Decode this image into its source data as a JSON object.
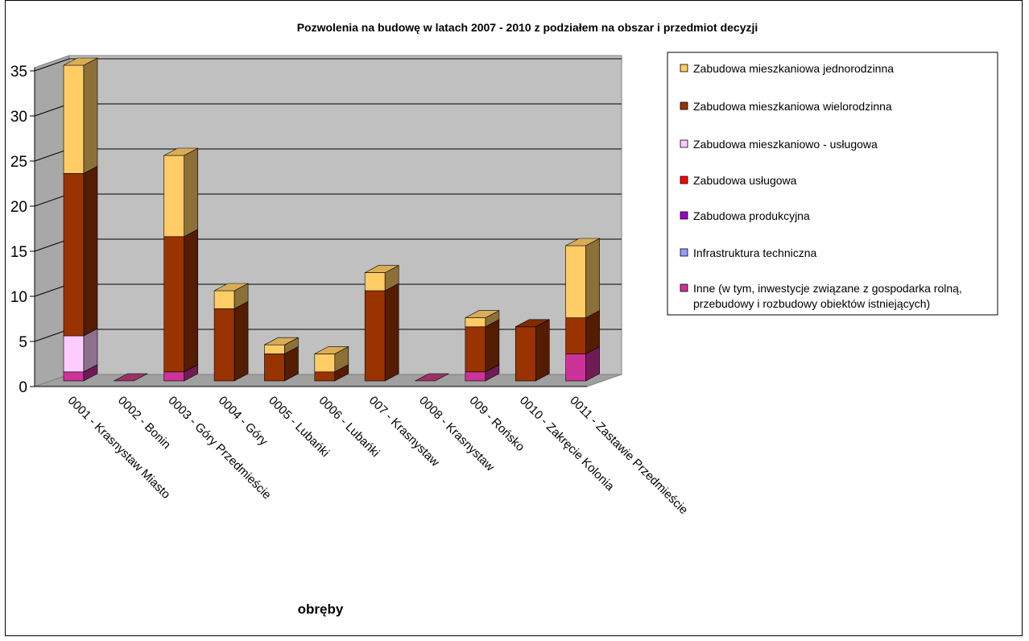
{
  "chart_data": {
    "type": "bar",
    "stacked": true,
    "three_d": true,
    "title": "Pozwolenia na budowę w latach 2007 - 2010 z podziałem na obszar i przedmiot decyzji",
    "xlabel": "obręby",
    "ylabel": "",
    "ylim": [
      0,
      35
    ],
    "yticks": [
      0,
      5,
      10,
      15,
      20,
      25,
      30,
      35
    ],
    "grid": true,
    "legend_position": "right",
    "categories": [
      "0001 - Krasnystaw Miasto",
      "0002 - Bonin",
      "0003 - Góry Przedmieście",
      "0004 - Góry",
      "0005 - Lubańki",
      "0006 - Lubańki",
      "007 - Krasnystaw",
      "0008 - Krasnystaw",
      "009 - Rońsko",
      "0010 - Zakręcie Kolonia",
      "0011 - Zastawie Przedmieście"
    ],
    "series": [
      {
        "name": "Zabudowa mieszkaniowa jednorodzinna",
        "color": "#FFCC66",
        "values": [
          12,
          0,
          9,
          2,
          1,
          2,
          2,
          0,
          1,
          0,
          8
        ]
      },
      {
        "name": "Zabudowa mieszkaniowa wielorodzinna",
        "color": "#993300",
        "values": [
          18,
          0,
          15,
          8,
          3,
          1,
          10,
          0,
          5,
          6,
          4
        ]
      },
      {
        "name": "Zabudowa mieszkaniowo - usługowa",
        "color": "#FFCCFF",
        "values": [
          4,
          0,
          0,
          0,
          0,
          0,
          0,
          0,
          0,
          0,
          0
        ]
      },
      {
        "name": "Zabudowa usługowa",
        "color": "#FF0000",
        "values": [
          0,
          0,
          0,
          0,
          0,
          0,
          0,
          0,
          0,
          0,
          0
        ]
      },
      {
        "name": "Zabudowa produkcyjna",
        "color": "#9900CC",
        "values": [
          0,
          0,
          0,
          0,
          0,
          0,
          0,
          0,
          0,
          0,
          0
        ]
      },
      {
        "name": "Infrastruktura techniczna",
        "color": "#9999FF",
        "values": [
          0,
          0,
          0,
          0,
          0,
          0,
          0,
          0,
          0,
          0,
          0
        ]
      },
      {
        "name": "Inne (w tym, inwestycje związane z gospodarka rolną, przebudowy i rozbudowy obiektów istniejących)",
        "color": "#CC3399",
        "values": [
          1,
          0,
          1,
          0,
          0,
          0,
          0,
          0,
          1,
          0,
          3
        ]
      }
    ],
    "legend_lines": [
      [
        "Zabudowa mieszkaniowa jednorodzinna"
      ],
      [
        "Zabudowa mieszkaniowa wielorodzinna"
      ],
      [
        "Zabudowa mieszkaniowo - usługowa"
      ],
      [
        "Zabudowa usługowa"
      ],
      [
        "Zabudowa produkcyjna"
      ],
      [
        "Infrastruktura techniczna"
      ],
      [
        "Inne (w tym, inwestycje związane z gospodarka rolną,",
        "przebudowy i rozbudowy obiektów istniejących)"
      ]
    ]
  }
}
